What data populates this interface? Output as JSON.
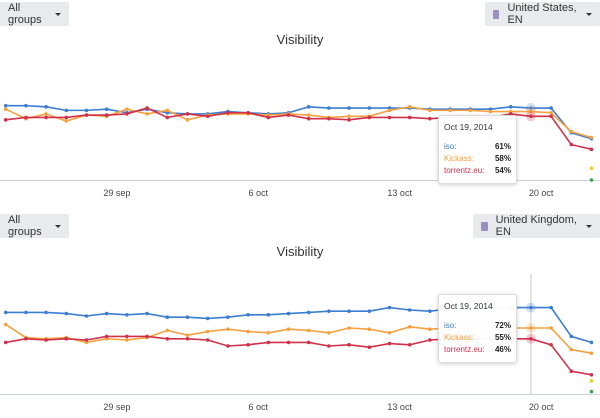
{
  "colors": {
    "iso": "#3a7dd1",
    "Kickass": "#f6a13f",
    "torrentz.eu": "#d0304a",
    "axis": "#c8d4e0",
    "extra1": "#f2cf1e",
    "extra2": "#3aa648"
  },
  "panels": [
    {
      "group_select": "All groups",
      "location_select": "United States, EN",
      "location_icon": "user-icon",
      "chart_data": {
        "type": "line",
        "title": "Visibility",
        "x": [
          "Sep 23",
          "Sep 24",
          "Sep 25",
          "Sep 26",
          "Sep 27",
          "Sep 28",
          "Sep 29",
          "Sep 30",
          "Oct 1",
          "Oct 2",
          "Oct 3",
          "Oct 4",
          "Oct 5",
          "Oct 6",
          "Oct 7",
          "Oct 8",
          "Oct 9",
          "Oct 10",
          "Oct 11",
          "Oct 12",
          "Oct 13",
          "Oct 14",
          "Oct 15",
          "Oct 16",
          "Oct 17",
          "Oct 18",
          "Oct 19",
          "Oct 20",
          "Oct 21",
          "Oct 22"
        ],
        "x_ticks": [
          "29 sep",
          "6 oct",
          "13 oct",
          "20 oct"
        ],
        "y_unit": "%",
        "ylim": [
          0,
          100
        ],
        "grid": false,
        "series": [
          {
            "name": "iso",
            "values": [
              63,
              63,
              62,
              59,
              59,
              60,
              57,
              60,
              57,
              56,
              56,
              58,
              57,
              56,
              57,
              62,
              61,
              61,
              61,
              61,
              61,
              60,
              60,
              60,
              60,
              62,
              61,
              61,
              40,
              35
            ]
          },
          {
            "name": "Kickass",
            "values": [
              60,
              52,
              56,
              50,
              55,
              54,
              60,
              56,
              59,
              51,
              55,
              56,
              56,
              55,
              56,
              55,
              53,
              54,
              54,
              59,
              62,
              59,
              59,
              59,
              58,
              58,
              58,
              57,
              41,
              36
            ]
          },
          {
            "name": "torrentz.eu",
            "values": [
              51,
              53,
              53,
              53,
              55,
              55,
              56,
              61,
              53,
              56,
              54,
              57,
              57,
              53,
              55,
              52,
              52,
              51,
              53,
              53,
              53,
              52,
              53,
              53,
              53,
              56,
              54,
              54,
              30,
              26
            ]
          }
        ],
        "extra_points": [
          {
            "x": "Oct 22",
            "value": 10,
            "color_key": "extra1"
          },
          {
            "x": "Oct 22",
            "value": 0,
            "color_key": "extra2"
          }
        ],
        "highlight_index": 26
      },
      "tooltip": {
        "date": "Oct 19, 2014",
        "rows": [
          {
            "label": "iso:",
            "value": "61%"
          },
          {
            "label": "Kickass:",
            "value": "58%"
          },
          {
            "label": "torrentz.eu:",
            "value": "54%"
          }
        ]
      }
    },
    {
      "group_select": "All groups",
      "location_select": "United Kingdom, EN",
      "location_icon": "user-icon",
      "chart_data": {
        "type": "line",
        "title": "Visibility",
        "x": [
          "Sep 23",
          "Sep 24",
          "Sep 25",
          "Sep 26",
          "Sep 27",
          "Sep 28",
          "Sep 29",
          "Sep 30",
          "Oct 1",
          "Oct 2",
          "Oct 3",
          "Oct 4",
          "Oct 5",
          "Oct 6",
          "Oct 7",
          "Oct 8",
          "Oct 9",
          "Oct 10",
          "Oct 11",
          "Oct 12",
          "Oct 13",
          "Oct 14",
          "Oct 15",
          "Oct 16",
          "Oct 17",
          "Oct 18",
          "Oct 19",
          "Oct 20",
          "Oct 21",
          "Oct 22"
        ],
        "x_ticks": [
          "29 sep",
          "6 oct",
          "13 oct",
          "20 oct"
        ],
        "y_unit": "%",
        "ylim": [
          0,
          100
        ],
        "grid": false,
        "series": [
          {
            "name": "iso",
            "values": [
              68,
              68,
              68,
              67,
              65,
              67,
              66,
              67,
              64,
              64,
              63,
              64,
              66,
              66,
              67,
              68,
              69,
              69,
              69,
              72,
              70,
              69,
              71,
              71,
              72,
              72,
              72,
              72,
              48,
              43
            ]
          },
          {
            "name": "Kickass",
            "values": [
              58,
              47,
              46,
              47,
              43,
              46,
              45,
              47,
              53,
              49,
              52,
              54,
              52,
              51,
              54,
              53,
              51,
              55,
              54,
              51,
              56,
              54,
              55,
              55,
              55,
              55,
              55,
              55,
              37,
              34
            ]
          },
          {
            "name": "torrentz.eu",
            "values": [
              43,
              46,
              45,
              46,
              45,
              48,
              48,
              48,
              46,
              46,
              45,
              40,
              41,
              43,
              43,
              43,
              40,
              41,
              39,
              42,
              41,
              45,
              46,
              46,
              46,
              46,
              46,
              41,
              19,
              16
            ]
          }
        ],
        "extra_points": [
          {
            "x": "Oct 22",
            "value": 11,
            "color_key": "extra1"
          },
          {
            "x": "Oct 22",
            "value": 2,
            "color_key": "extra2"
          }
        ],
        "highlight_index": 26,
        "crosshair": true
      },
      "tooltip": {
        "date": "Oct 19, 2014",
        "rows": [
          {
            "label": "iso:",
            "value": "72%"
          },
          {
            "label": "Kickass:",
            "value": "55%"
          },
          {
            "label": "torrentz.eu:",
            "value": "46%"
          }
        ]
      }
    }
  ]
}
